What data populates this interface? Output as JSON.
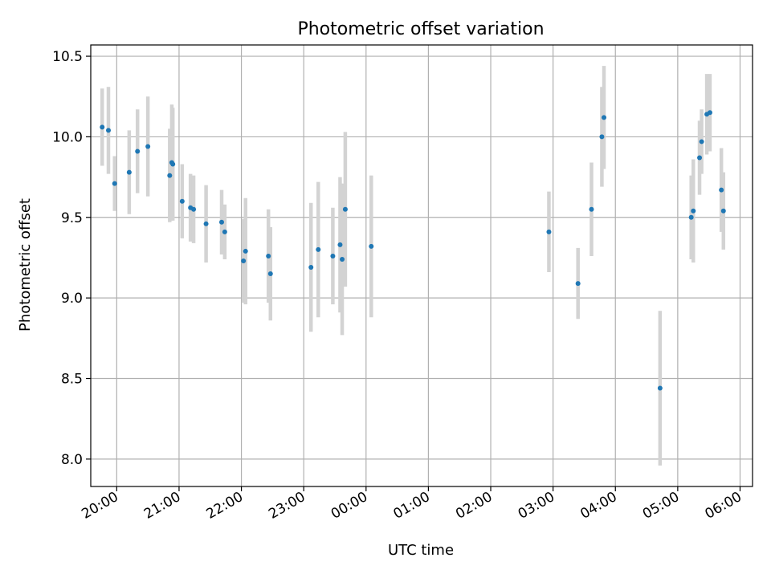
{
  "chart_data": {
    "type": "scatter",
    "title": "Photometric offset variation",
    "xlabel": "UTC time",
    "ylabel": "Photometric offset",
    "ylim": [
      7.83,
      10.57
    ],
    "xlim": [
      "19:35",
      "06:12"
    ],
    "grid": true,
    "marker_color": "#1f77b4",
    "errorbar_color": "#d3d3d3",
    "x_ticks": [
      "20:00",
      "21:00",
      "22:00",
      "23:00",
      "00:00",
      "01:00",
      "02:00",
      "03:00",
      "04:00",
      "05:00",
      "06:00"
    ],
    "y_ticks": [
      8.0,
      8.5,
      9.0,
      9.5,
      10.0,
      10.5
    ],
    "points": [
      {
        "t": "19:46",
        "y": 10.06,
        "err": 0.24
      },
      {
        "t": "19:52",
        "y": 10.04,
        "err": 0.27
      },
      {
        "t": "19:58",
        "y": 9.71,
        "err": 0.17
      },
      {
        "t": "20:12",
        "y": 9.78,
        "err": 0.26
      },
      {
        "t": "20:20",
        "y": 9.91,
        "err": 0.26
      },
      {
        "t": "20:30",
        "y": 9.94,
        "err": 0.31
      },
      {
        "t": "20:51",
        "y": 9.76,
        "err": 0.29
      },
      {
        "t": "20:53",
        "y": 9.84,
        "err": 0.36
      },
      {
        "t": "20:54",
        "y": 9.83,
        "err": 0.35
      },
      {
        "t": "21:03",
        "y": 9.6,
        "err": 0.23
      },
      {
        "t": "21:11",
        "y": 9.56,
        "err": 0.21
      },
      {
        "t": "21:14",
        "y": 9.55,
        "err": 0.21
      },
      {
        "t": "21:26",
        "y": 9.46,
        "err": 0.24
      },
      {
        "t": "21:41",
        "y": 9.47,
        "err": 0.2
      },
      {
        "t": "21:44",
        "y": 9.41,
        "err": 0.17
      },
      {
        "t": "22:02",
        "y": 9.23,
        "err": 0.26
      },
      {
        "t": "22:04",
        "y": 9.29,
        "err": 0.33
      },
      {
        "t": "22:26",
        "y": 9.26,
        "err": 0.29
      },
      {
        "t": "22:28",
        "y": 9.15,
        "err": 0.29
      },
      {
        "t": "23:07",
        "y": 9.19,
        "err": 0.4
      },
      {
        "t": "23:14",
        "y": 9.3,
        "err": 0.42
      },
      {
        "t": "23:28",
        "y": 9.26,
        "err": 0.3
      },
      {
        "t": "23:35",
        "y": 9.33,
        "err": 0.42
      },
      {
        "t": "23:37",
        "y": 9.24,
        "err": 0.47
      },
      {
        "t": "23:40",
        "y": 9.55,
        "err": 0.48
      },
      {
        "t": "00:05",
        "y": 9.32,
        "err": 0.44
      },
      {
        "t": "02:56",
        "y": 9.41,
        "err": 0.25
      },
      {
        "t": "03:24",
        "y": 9.09,
        "err": 0.22
      },
      {
        "t": "03:37",
        "y": 9.55,
        "err": 0.29
      },
      {
        "t": "03:47",
        "y": 10.0,
        "err": 0.31
      },
      {
        "t": "03:49",
        "y": 10.12,
        "err": 0.32
      },
      {
        "t": "04:43",
        "y": 8.44,
        "err": 0.48
      },
      {
        "t": "05:13",
        "y": 9.5,
        "err": 0.26
      },
      {
        "t": "05:15",
        "y": 9.54,
        "err": 0.32
      },
      {
        "t": "05:21",
        "y": 9.87,
        "err": 0.23
      },
      {
        "t": "05:23",
        "y": 9.97,
        "err": 0.2
      },
      {
        "t": "05:28",
        "y": 10.14,
        "err": 0.25
      },
      {
        "t": "05:31",
        "y": 10.15,
        "err": 0.24
      },
      {
        "t": "05:42",
        "y": 9.67,
        "err": 0.26
      },
      {
        "t": "05:44",
        "y": 9.54,
        "err": 0.24
      }
    ]
  }
}
